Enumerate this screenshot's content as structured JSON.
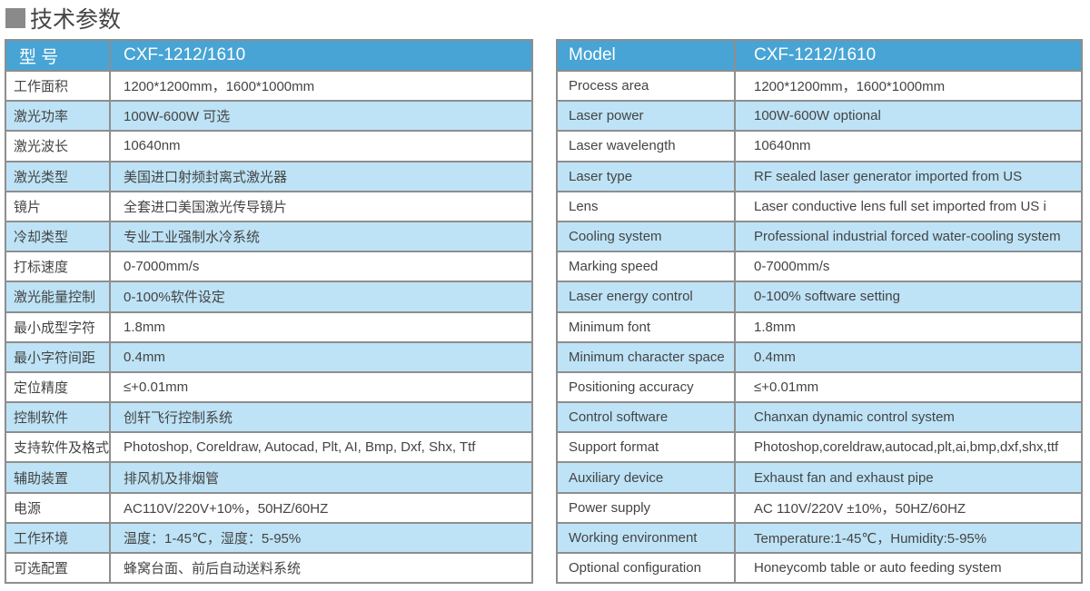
{
  "section_title": "技术参数",
  "zh": {
    "header": [
      "型 号",
      "CXF-1212/1610"
    ],
    "rows": [
      [
        "工作面积",
        "1200*1200mm，1600*1000mm"
      ],
      [
        "激光功率",
        "100W-600W 可选"
      ],
      [
        "激光波长",
        "10640nm"
      ],
      [
        "激光类型",
        "美国进口射频封离式激光器"
      ],
      [
        "镜片",
        "全套进口美国激光传导镜片"
      ],
      [
        "冷却类型",
        "专业工业强制水冷系统"
      ],
      [
        "打标速度",
        "0-7000mm/s"
      ],
      [
        "激光能量控制",
        "0-100%软件设定"
      ],
      [
        "最小成型字符",
        "1.8mm"
      ],
      [
        "最小字符间距",
        "0.4mm"
      ],
      [
        "定位精度",
        "≤+0.01mm"
      ],
      [
        "控制软件",
        "创轩飞行控制系统"
      ],
      [
        "支持软件及格式",
        "Photoshop, Coreldraw, Autocad, Plt, AI, Bmp, Dxf, Shx, Ttf"
      ],
      [
        "辅助装置",
        "排风机及排烟管"
      ],
      [
        "电源",
        "AC110V/220V+10%，50HZ/60HZ"
      ],
      [
        "工作环境",
        "温度：1-45℃，湿度：5-95%"
      ],
      [
        "可选配置",
        "蜂窝台面、前后自动送料系统"
      ]
    ]
  },
  "en": {
    "header": [
      "Model",
      "CXF-1212/1610"
    ],
    "rows": [
      [
        "Process area",
        "1200*1200mm，1600*1000mm"
      ],
      [
        "Laser power",
        "100W-600W optional"
      ],
      [
        "Laser wavelength",
        "10640nm"
      ],
      [
        "Laser type",
        "RF sealed laser generator imported from US"
      ],
      [
        "Lens",
        "Laser conductive lens full set imported from US i"
      ],
      [
        "Cooling system",
        "Professional industrial forced water-cooling system"
      ],
      [
        "Marking speed",
        "0-7000mm/s"
      ],
      [
        "Laser energy control",
        "0-100% software setting"
      ],
      [
        "Minimum  font",
        "1.8mm"
      ],
      [
        "Minimum character space",
        "0.4mm"
      ],
      [
        "Positioning accuracy",
        "≤+0.01mm"
      ],
      [
        "Control software",
        "Chanxan dynamic control system"
      ],
      [
        "Support format",
        "Photoshop,coreldraw,autocad,plt,ai,bmp,dxf,shx,ttf"
      ],
      [
        "Auxiliary device",
        "Exhaust fan and exhaust pipe"
      ],
      [
        "Power supply",
        "AC 110V/220V ±10%，50HZ/60HZ"
      ],
      [
        "Working environment",
        "Temperature:1-45℃，Humidity:5-95%"
      ],
      [
        "Optional configuration",
        "Honeycomb table or auto feeding system"
      ]
    ]
  },
  "colors": {
    "header": "#47a4d5",
    "alt_row": "#bee3f6",
    "border": "#8e8e8e"
  }
}
